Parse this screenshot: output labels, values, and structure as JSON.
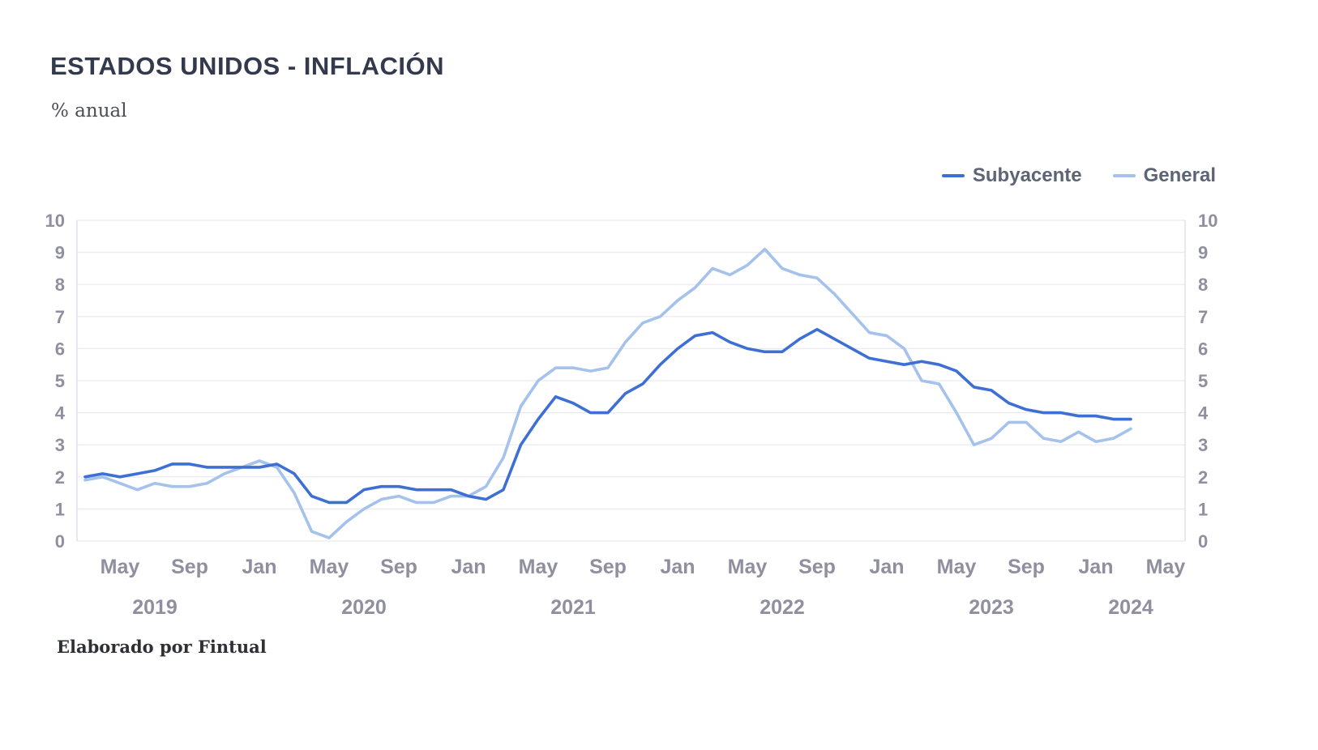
{
  "header": {
    "title": "ESTADOS UNIDOS - INFLACIÓN",
    "subtitle": "% anual"
  },
  "legend": [
    {
      "label": "Subyacente",
      "color": "#3e6fd4"
    },
    {
      "label": "General",
      "color": "#a4c2eb"
    }
  ],
  "footer": {
    "credit": "Elaborado por Fintual"
  },
  "chart_data": {
    "type": "line",
    "title": "ESTADOS UNIDOS - INFLACIÓN",
    "subtitle": "% anual",
    "ylabel": "",
    "xlabel": "",
    "x_start_month": "2019-03",
    "x_end_month": "2024-03",
    "months_per_point": 1,
    "ylim": [
      0,
      10
    ],
    "y_ticks": [
      0,
      1,
      2,
      3,
      4,
      5,
      6,
      7,
      8,
      9,
      10
    ],
    "grid": true,
    "legend_position": "top-right",
    "colors": {
      "grid": "#e9e9ef",
      "axis": "#d9d9e2",
      "tick": "#8f8f9f"
    },
    "x_ticks": [
      {
        "label": "May",
        "index": 2
      },
      {
        "label": "Sep",
        "index": 6
      },
      {
        "label": "Jan",
        "index": 10
      },
      {
        "label": "May",
        "index": 14
      },
      {
        "label": "Sep",
        "index": 18
      },
      {
        "label": "Jan",
        "index": 22
      },
      {
        "label": "May",
        "index": 26
      },
      {
        "label": "Sep",
        "index": 30
      },
      {
        "label": "Jan",
        "index": 34
      },
      {
        "label": "May",
        "index": 38
      },
      {
        "label": "Sep",
        "index": 42
      },
      {
        "label": "Jan",
        "index": 46
      },
      {
        "label": "May",
        "index": 50
      },
      {
        "label": "Sep",
        "index": 54
      },
      {
        "label": "Jan",
        "index": 58
      },
      {
        "label": "May",
        "index": 62
      }
    ],
    "year_labels": [
      {
        "label": "2019",
        "index": 4
      },
      {
        "label": "2020",
        "index": 16
      },
      {
        "label": "2021",
        "index": 28
      },
      {
        "label": "2022",
        "index": 40
      },
      {
        "label": "2023",
        "index": 52
      },
      {
        "label": "2024",
        "index": 60
      }
    ],
    "series": [
      {
        "name": "Subyacente",
        "color": "#3e6fd4",
        "values": [
          2.0,
          2.1,
          2.0,
          2.1,
          2.2,
          2.4,
          2.4,
          2.3,
          2.3,
          2.3,
          2.3,
          2.4,
          2.1,
          1.4,
          1.2,
          1.2,
          1.6,
          1.7,
          1.7,
          1.6,
          1.6,
          1.6,
          1.4,
          1.3,
          1.6,
          3.0,
          3.8,
          4.5,
          4.3,
          4.0,
          4.0,
          4.6,
          4.9,
          5.5,
          6.0,
          6.4,
          6.5,
          6.2,
          6.0,
          5.9,
          5.9,
          6.3,
          6.6,
          6.3,
          6.0,
          5.7,
          5.6,
          5.5,
          5.6,
          5.5,
          5.3,
          4.8,
          4.7,
          4.3,
          4.1,
          4.0,
          4.0,
          3.9,
          3.9,
          3.8,
          3.8
        ]
      },
      {
        "name": "General",
        "color": "#a4c2eb",
        "values": [
          1.9,
          2.0,
          1.8,
          1.6,
          1.8,
          1.7,
          1.7,
          1.8,
          2.1,
          2.3,
          2.5,
          2.3,
          1.5,
          0.3,
          0.1,
          0.6,
          1.0,
          1.3,
          1.4,
          1.2,
          1.2,
          1.4,
          1.4,
          1.7,
          2.6,
          4.2,
          5.0,
          5.4,
          5.4,
          5.3,
          5.4,
          6.2,
          6.8,
          7.0,
          7.5,
          7.9,
          8.5,
          8.3,
          8.6,
          9.1,
          8.5,
          8.3,
          8.2,
          7.7,
          7.1,
          6.5,
          6.4,
          6.0,
          5.0,
          4.9,
          4.0,
          3.0,
          3.2,
          3.7,
          3.7,
          3.2,
          3.1,
          3.4,
          3.1,
          3.2,
          3.5
        ]
      }
    ]
  }
}
